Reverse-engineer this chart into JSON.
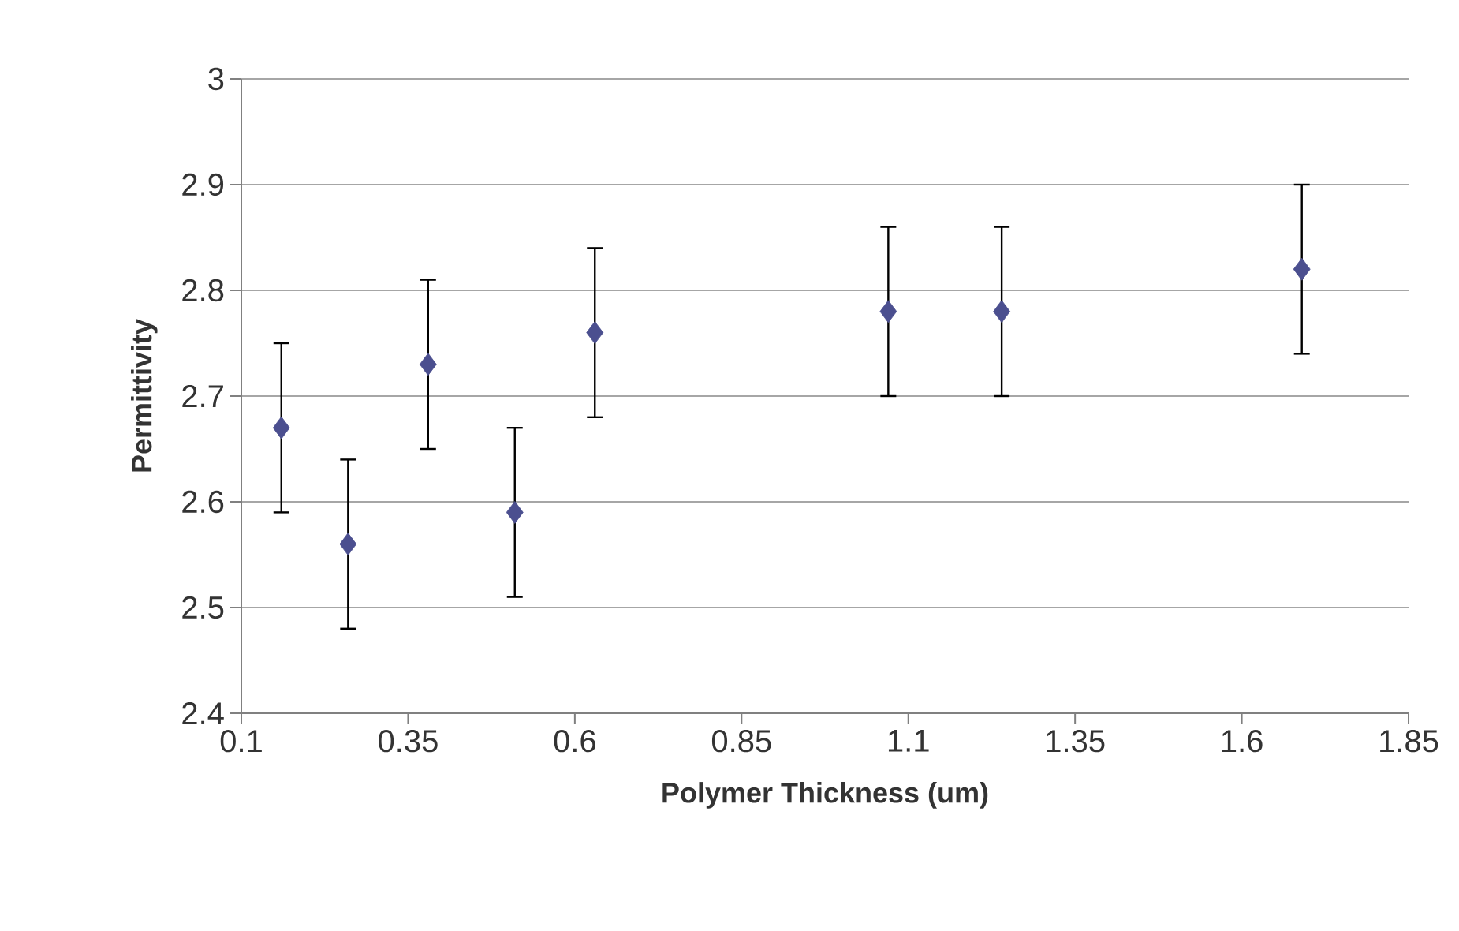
{
  "chart_data": {
    "type": "scatter",
    "xlabel": "Polymer Thickness (um)",
    "ylabel": "Permittivity",
    "x": [
      0.16,
      0.26,
      0.38,
      0.51,
      0.63,
      1.07,
      1.24,
      1.69
    ],
    "values": [
      2.67,
      2.56,
      2.73,
      2.59,
      2.76,
      2.78,
      2.78,
      2.82
    ],
    "errors": [
      0.08,
      0.08,
      0.08,
      0.08,
      0.08,
      0.08,
      0.08,
      0.08
    ],
    "color": "#4b4f8f",
    "marker": "diamond",
    "xlim": [
      0.1,
      1.85
    ],
    "xticks": [
      0.1,
      0.35,
      0.6,
      0.85,
      1.1,
      1.35,
      1.6,
      1.85
    ],
    "ylim": [
      2.4,
      3
    ],
    "yticks": [
      2.4,
      2.5,
      2.6,
      2.7,
      2.8,
      2.9,
      3
    ],
    "grid": "y"
  }
}
